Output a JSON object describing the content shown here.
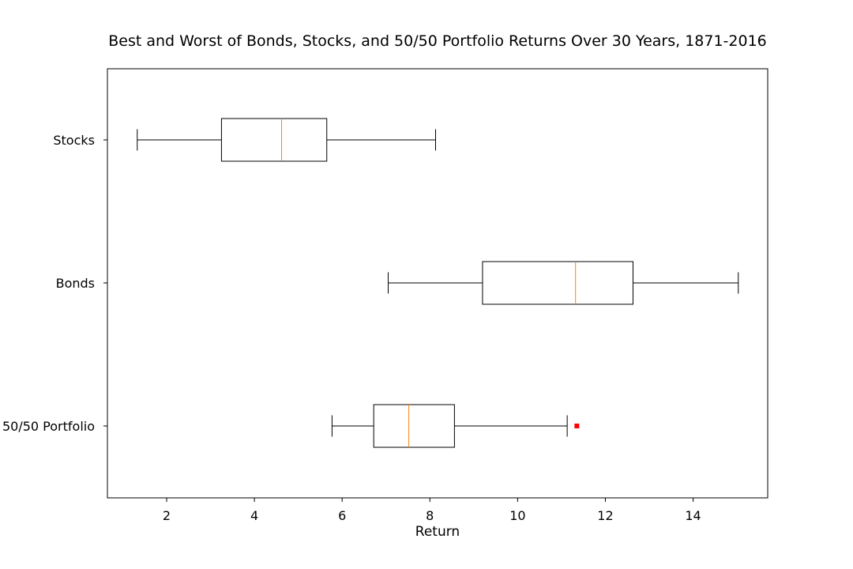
{
  "chart_data": {
    "type": "boxplot",
    "orientation": "horizontal",
    "title": "Best and Worst of Bonds, Stocks, and 50/50 Portfolio Returns Over 30 Years, 1871-2016",
    "xlabel": "Return",
    "ylabel": "",
    "xlim": [
      0.65,
      15.7
    ],
    "xticks": [
      2,
      4,
      6,
      8,
      10,
      12,
      14
    ],
    "grid": false,
    "colors": {
      "box": "#000000",
      "median": "#ff7f0e",
      "outlier": "#ff0000"
    },
    "series": [
      {
        "name": "Stocks",
        "whisker_low": 1.33,
        "q1": 3.25,
        "median": 4.62,
        "q3": 5.65,
        "whisker_high": 8.13,
        "outliers": []
      },
      {
        "name": "Bonds",
        "whisker_low": 7.05,
        "q1": 9.2,
        "median": 11.32,
        "q3": 12.63,
        "whisker_high": 15.03,
        "outliers": []
      },
      {
        "name": "50/50 Portfolio",
        "whisker_low": 5.77,
        "q1": 6.72,
        "median": 7.52,
        "q3": 8.56,
        "whisker_high": 11.13,
        "outliers": [
          11.35
        ]
      }
    ]
  }
}
